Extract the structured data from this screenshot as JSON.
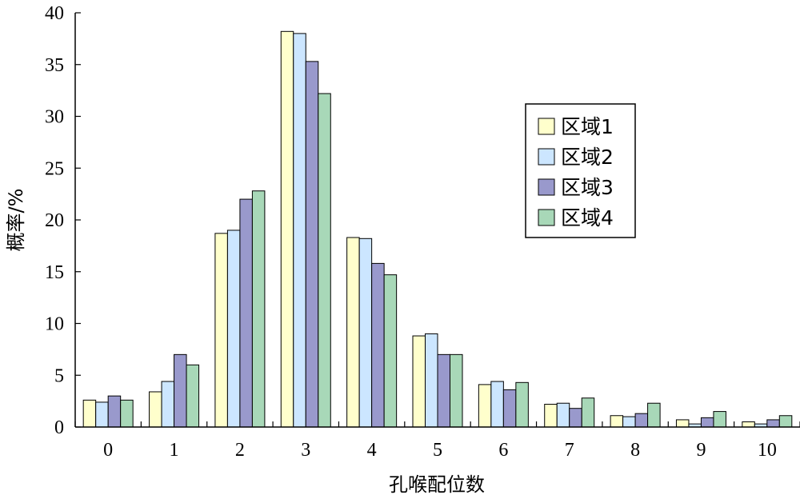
{
  "chart_data": {
    "type": "bar",
    "xlabel": "孔喉配位数",
    "ylabel": "概率/%",
    "ylim": [
      0,
      40
    ],
    "yticks": [
      0,
      5,
      10,
      15,
      20,
      25,
      30,
      35,
      40
    ],
    "categories": [
      "0",
      "1",
      "2",
      "3",
      "4",
      "5",
      "6",
      "7",
      "8",
      "9",
      "10"
    ],
    "series": [
      {
        "name": "区域1",
        "color": "#FFFFCC",
        "values": [
          2.6,
          3.4,
          18.7,
          38.2,
          18.3,
          8.8,
          4.1,
          2.2,
          1.1,
          0.7,
          0.5
        ]
      },
      {
        "name": "区域2",
        "color": "#CCE6FF",
        "values": [
          2.4,
          4.4,
          19.0,
          38.0,
          18.2,
          9.0,
          4.4,
          2.3,
          1.0,
          0.3,
          0.3
        ]
      },
      {
        "name": "区域3",
        "color": "#9999CC",
        "values": [
          3.0,
          7.0,
          22.0,
          35.3,
          15.8,
          7.0,
          3.6,
          1.8,
          1.3,
          0.9,
          0.7
        ]
      },
      {
        "name": "区域4",
        "color": "#A8D8B8",
        "values": [
          2.6,
          6.0,
          22.8,
          32.2,
          14.7,
          7.0,
          4.3,
          2.8,
          2.3,
          1.5,
          1.1
        ]
      }
    ],
    "legend_position": "right",
    "grid": false
  }
}
